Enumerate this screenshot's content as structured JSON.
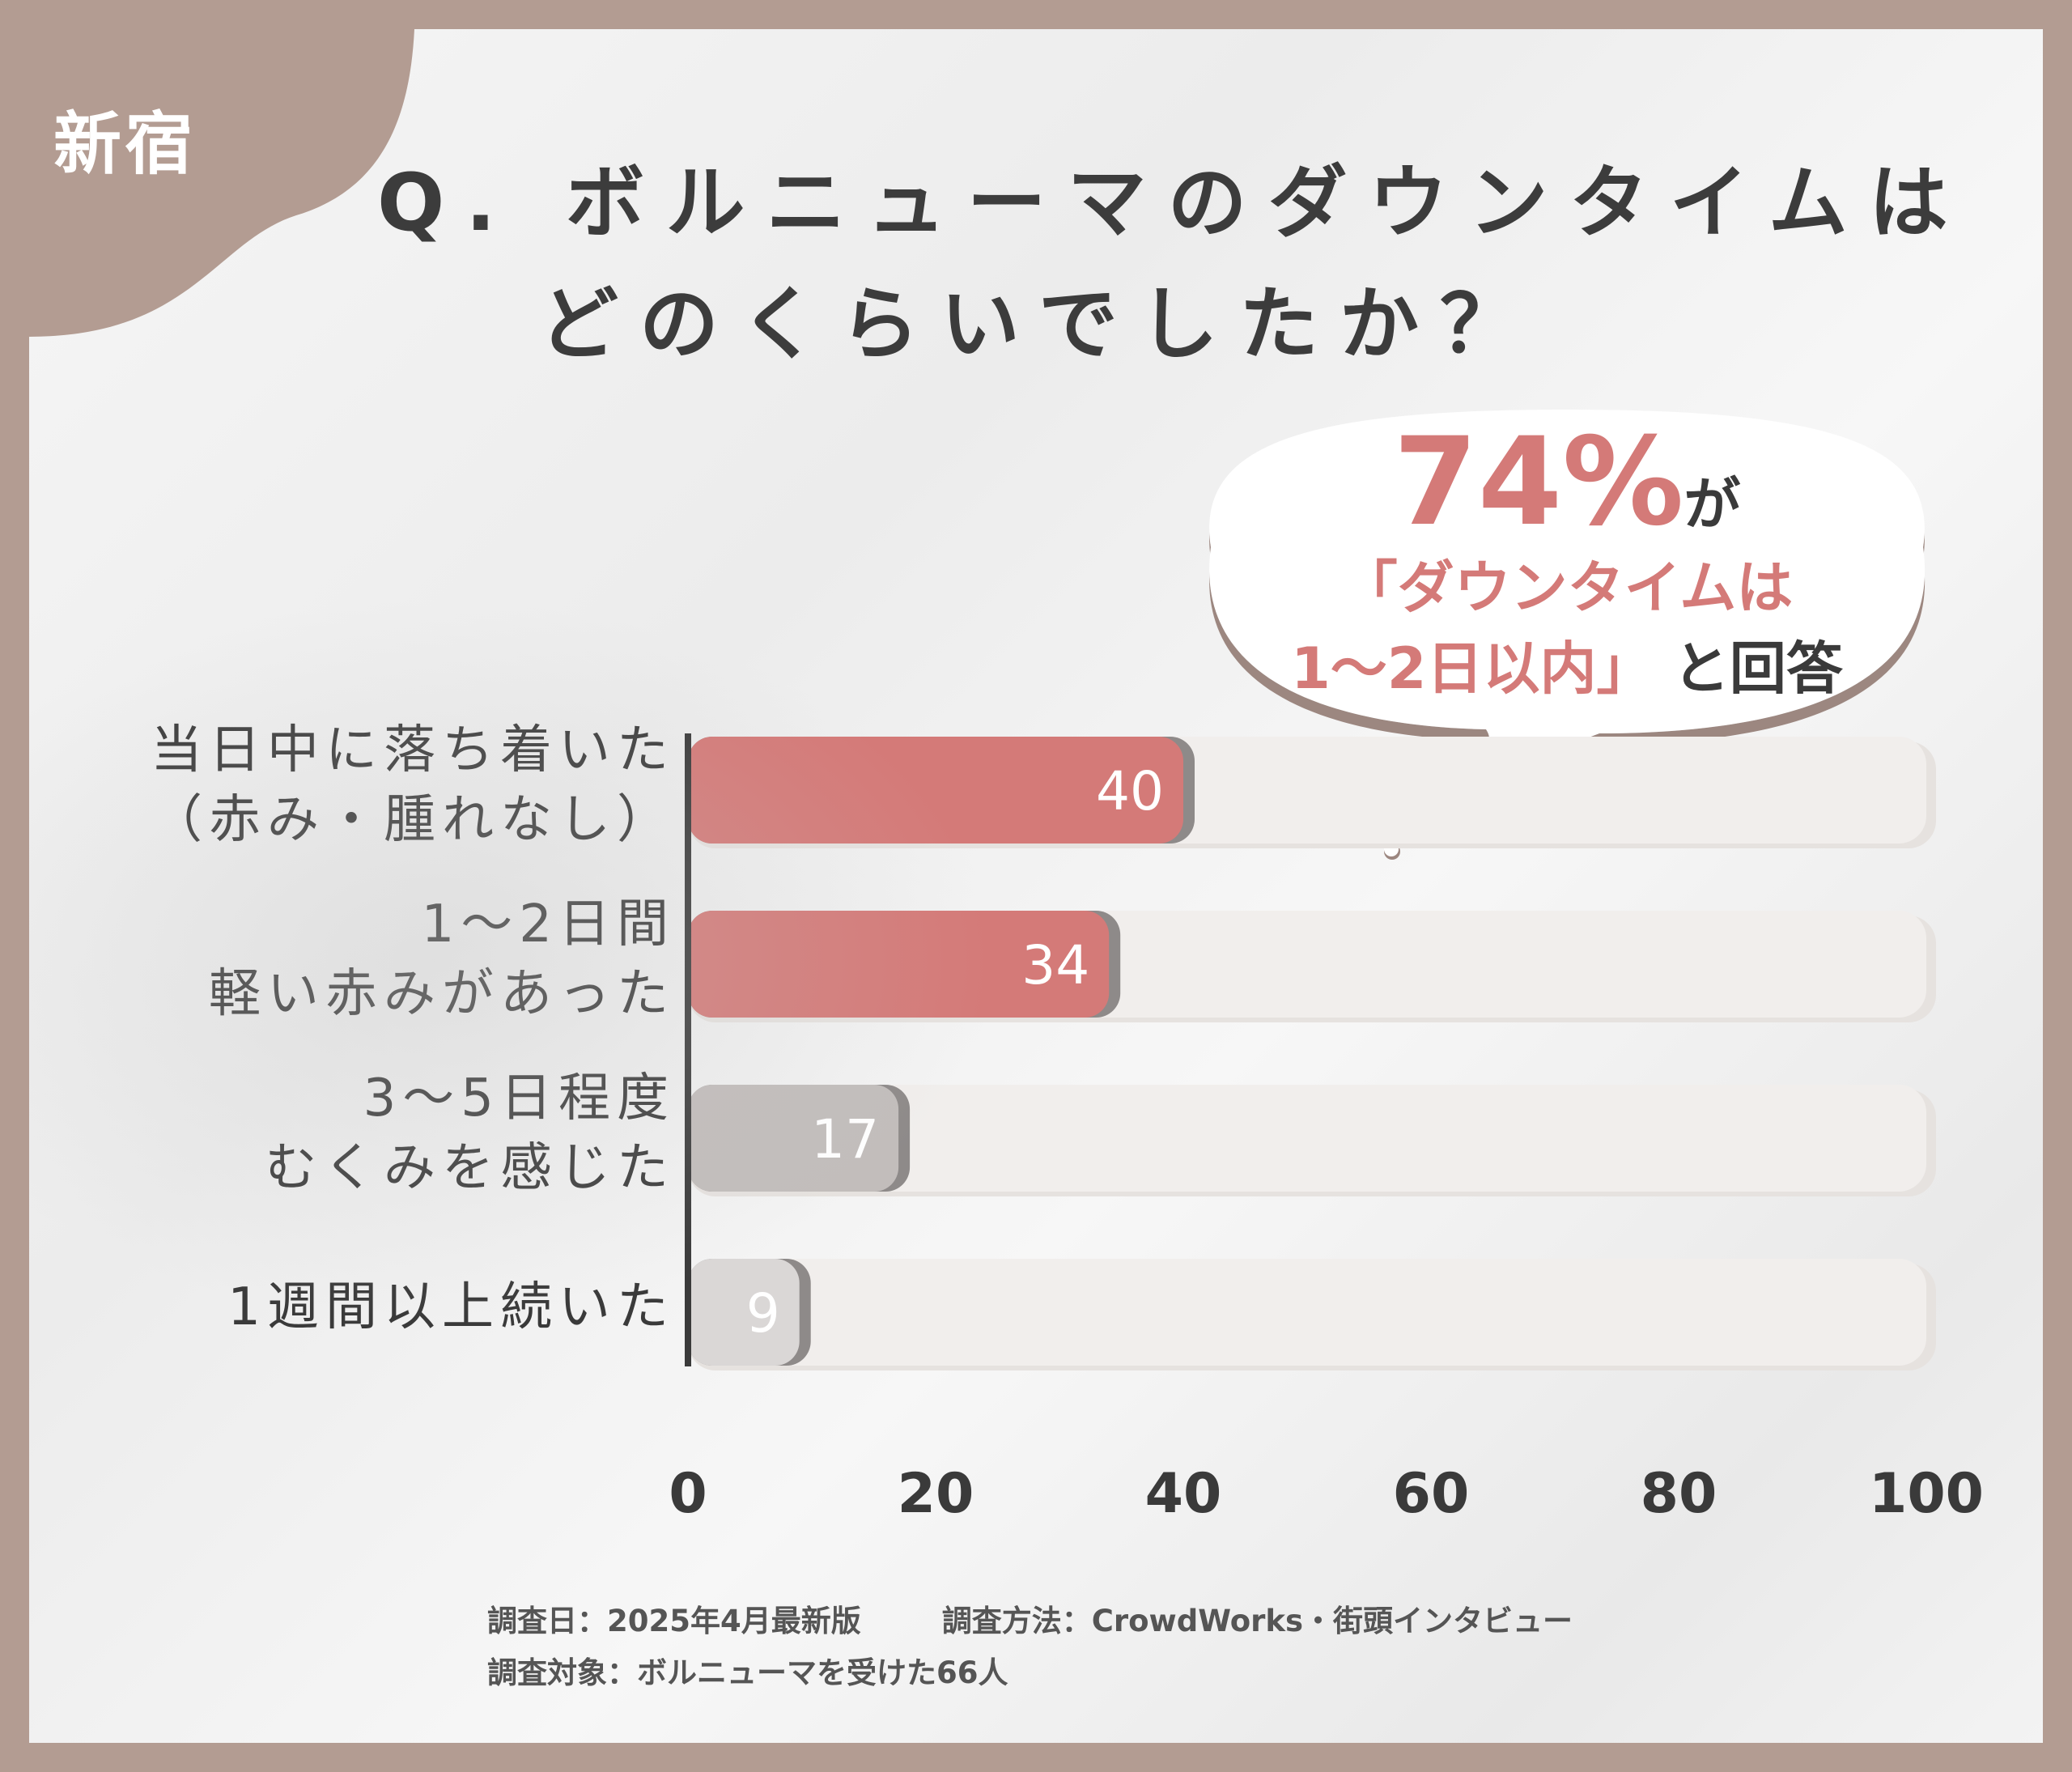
{
  "location": "新宿",
  "title": {
    "line1": "Q. ボルニューマのダウンタイムは",
    "line2": "どのくらいでしたか？"
  },
  "callout": {
    "percent": "74%",
    "ga": "が",
    "line2": "「ダウンタイムは",
    "line3": "1～2日以内」",
    "answer": "と回答"
  },
  "chart_data": {
    "type": "bar",
    "orientation": "horizontal",
    "categories": [
      [
        "当日中に落ち着いた",
        "（赤み・腫れなし）"
      ],
      [
        "1～2日間",
        "軽い赤みがあった"
      ],
      [
        "3～5日程度",
        "むくみを感じた"
      ],
      [
        "1週間以上続いた"
      ]
    ],
    "values": [
      40,
      34,
      17,
      9
    ],
    "value_labels": [
      "40",
      "34",
      "17",
      "9"
    ],
    "xlim": [
      0,
      100
    ],
    "xticks": [
      "0",
      "20",
      "40",
      "60",
      "80",
      "100"
    ],
    "bar_colors": [
      "#d47a78",
      "#d47a78",
      "#c2bdbb",
      "#dad7d6"
    ],
    "track_color": "#f1eeec",
    "grid": false,
    "legend": "none"
  },
  "footer": {
    "date": "調査日：2025年4月最新版",
    "method": "調査方法：CrowdWorks・街頭インタビュー",
    "subjects": "調査対象：ボルニューマを受けた66人"
  }
}
